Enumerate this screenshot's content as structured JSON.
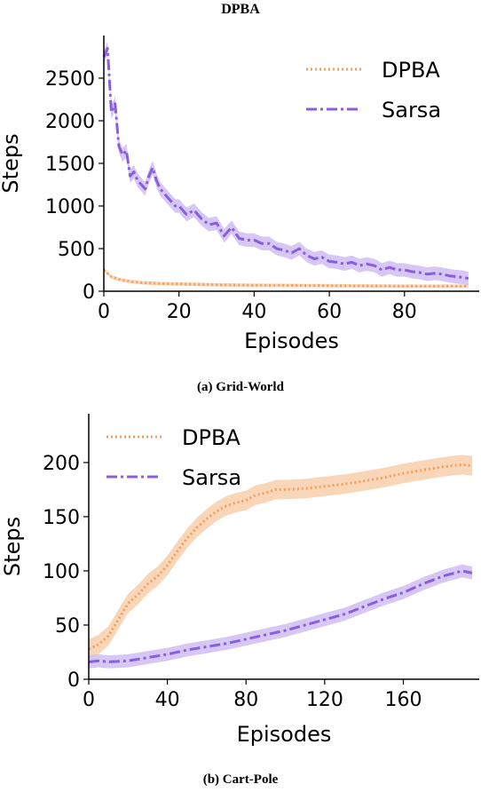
{
  "figure_title": "DPBA",
  "captions": {
    "a": "(a) Grid-World",
    "b": "(b) Cart-Pole"
  },
  "colors": {
    "dpba": "#f0a060",
    "dpba_band": "#f7c8a0",
    "sarsa": "#8a5ee0",
    "sarsa_band": "#c9b4f0"
  },
  "chart_data": [
    {
      "type": "line",
      "title": "",
      "xlabel": "Episodes",
      "ylabel": "Steps",
      "xlim": [
        0,
        98
      ],
      "ylim": [
        0,
        3000
      ],
      "xticks": [
        0,
        20,
        40,
        60,
        80
      ],
      "yticks": [
        0,
        500,
        1000,
        1500,
        2000,
        2500
      ],
      "legend_position": "top-right",
      "series": [
        {
          "name": "DPBA",
          "style": "dotted",
          "x": [
            0,
            2,
            4,
            6,
            8,
            10,
            15,
            20,
            25,
            30,
            40,
            50,
            60,
            70,
            80,
            90,
            97
          ],
          "y": [
            250,
            170,
            140,
            120,
            110,
            100,
            90,
            85,
            80,
            75,
            70,
            68,
            65,
            62,
            60,
            60,
            60
          ],
          "band": 20
        },
        {
          "name": "Sarsa",
          "style": "dashdot",
          "x": [
            0,
            1,
            2,
            3,
            4,
            5,
            6,
            7,
            8,
            9,
            10,
            11,
            12,
            13,
            14,
            15,
            16,
            17,
            18,
            19,
            20,
            22,
            24,
            26,
            28,
            30,
            32,
            34,
            36,
            38,
            40,
            42,
            44,
            46,
            48,
            50,
            52,
            54,
            56,
            58,
            60,
            62,
            64,
            66,
            68,
            70,
            72,
            74,
            76,
            78,
            80,
            82,
            84,
            86,
            88,
            90,
            92,
            94,
            96,
            97
          ],
          "y": [
            2750,
            2850,
            2100,
            2200,
            1700,
            1600,
            1650,
            1350,
            1400,
            1300,
            1250,
            1200,
            1350,
            1450,
            1300,
            1200,
            1150,
            1100,
            1050,
            1000,
            1000,
            900,
            950,
            850,
            780,
            800,
            650,
            750,
            620,
            600,
            600,
            560,
            560,
            500,
            480,
            450,
            500,
            420,
            380,
            400,
            350,
            340,
            320,
            340,
            300,
            320,
            300,
            250,
            280,
            250,
            250,
            230,
            220,
            200,
            210,
            200,
            180,
            170,
            160,
            150
          ],
          "band": 80
        }
      ]
    },
    {
      "type": "line",
      "title": "",
      "xlabel": "Episodes",
      "ylabel": "Steps",
      "xlim": [
        0,
        195
      ],
      "ylim": [
        0,
        245
      ],
      "xticks": [
        0,
        40,
        80,
        120,
        160
      ],
      "yticks": [
        0,
        50,
        100,
        150,
        200
      ],
      "legend_position": "top-left",
      "series": [
        {
          "name": "DPBA",
          "style": "dotted",
          "x": [
            0,
            5,
            10,
            15,
            20,
            25,
            30,
            35,
            40,
            45,
            50,
            55,
            60,
            65,
            70,
            75,
            80,
            85,
            90,
            95,
            100,
            110,
            120,
            130,
            140,
            150,
            160,
            170,
            180,
            190,
            195
          ],
          "y": [
            28,
            32,
            40,
            55,
            70,
            78,
            88,
            95,
            105,
            118,
            130,
            140,
            148,
            155,
            160,
            163,
            165,
            170,
            172,
            175,
            175,
            176,
            178,
            180,
            183,
            186,
            190,
            193,
            196,
            198,
            197
          ],
          "band": 9
        },
        {
          "name": "Sarsa",
          "style": "dashdot",
          "x": [
            0,
            5,
            10,
            20,
            30,
            40,
            50,
            60,
            70,
            80,
            90,
            100,
            110,
            120,
            130,
            140,
            150,
            160,
            170,
            180,
            190,
            195
          ],
          "y": [
            16,
            17,
            16,
            17,
            20,
            23,
            27,
            30,
            33,
            37,
            41,
            45,
            50,
            55,
            60,
            67,
            74,
            80,
            88,
            95,
            100,
            98
          ],
          "band": 6
        }
      ]
    }
  ]
}
